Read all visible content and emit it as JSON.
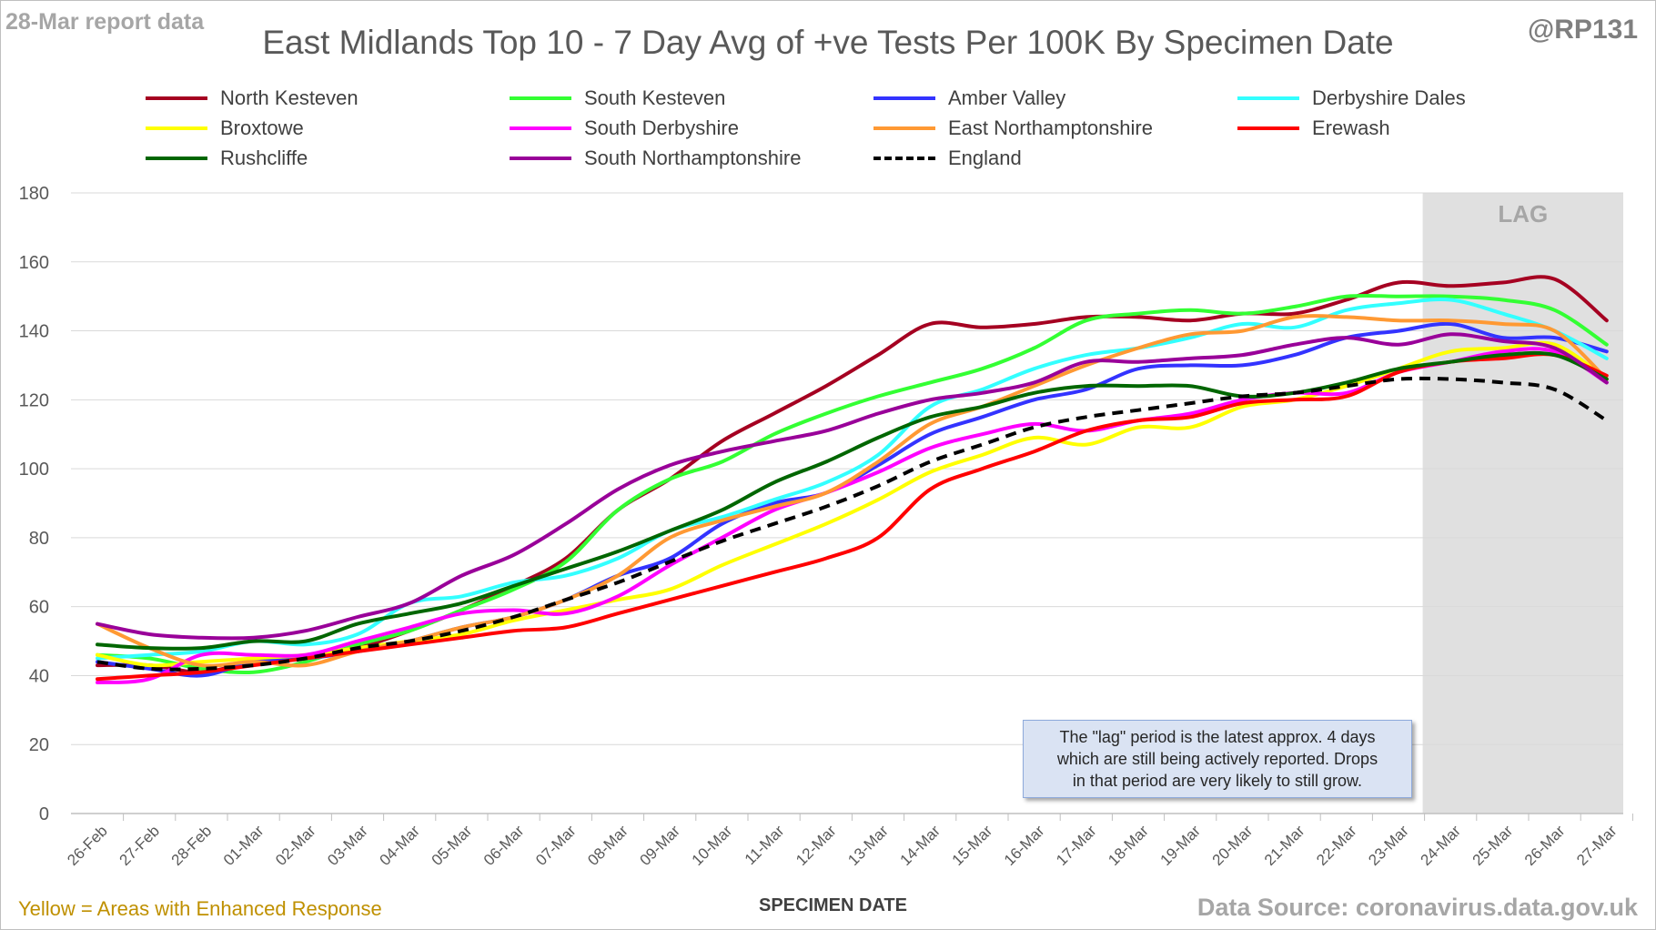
{
  "header": {
    "report_date": "28-Mar report data",
    "title": "East Midlands Top 10 - 7 Day Avg of +ve Tests Per 100K By Specimen Date",
    "handle": "@RP131"
  },
  "footer": {
    "enhanced_note": "Yellow = Areas with Enhanced Response",
    "data_source": "Data Source: coronavirus.data.gov.uk"
  },
  "annotation": {
    "lag_label": "LAG",
    "note_lines": [
      "The \"lag\" period is the latest approx. 4 days",
      "which are still being actively reported.  Drops",
      "in that period are very likely to still grow."
    ]
  },
  "chart_data": {
    "type": "line",
    "title": "East Midlands Top 10 - 7 Day Avg of +ve Tests Per 100K By Specimen Date",
    "xlabel": "SPECIMEN DATE",
    "ylabel": "",
    "ylim": [
      0,
      180
    ],
    "yticks": [
      0,
      20,
      40,
      60,
      80,
      100,
      120,
      140,
      160,
      180
    ],
    "grid": true,
    "legend_position": "top",
    "lag_region": {
      "from": "23-Mar",
      "to": "27-Mar",
      "color": "#e0e0e0"
    },
    "categories": [
      "26-Feb",
      "27-Feb",
      "28-Feb",
      "01-Mar",
      "02-Mar",
      "03-Mar",
      "04-Mar",
      "05-Mar",
      "06-Mar",
      "07-Mar",
      "08-Mar",
      "09-Mar",
      "10-Mar",
      "11-Mar",
      "12-Mar",
      "13-Mar",
      "14-Mar",
      "15-Mar",
      "16-Mar",
      "17-Mar",
      "18-Mar",
      "19-Mar",
      "20-Mar",
      "21-Mar",
      "22-Mar",
      "23-Mar",
      "24-Mar",
      "25-Mar",
      "26-Mar",
      "27-Mar"
    ],
    "series": [
      {
        "name": "North Kesteven",
        "color": "#a50021",
        "dash": false,
        "values": [
          43,
          43,
          41,
          44,
          45,
          48,
          53,
          59,
          66,
          74,
          88,
          97,
          108,
          116,
          124,
          133,
          142,
          141,
          142,
          144,
          144,
          143,
          145,
          145,
          149,
          154,
          153,
          154,
          155,
          143
        ]
      },
      {
        "name": "South Kesteven",
        "color": "#33ff33",
        "dash": false,
        "values": [
          46,
          45,
          42,
          41,
          44,
          49,
          53,
          59,
          65,
          73,
          88,
          97,
          102,
          110,
          116,
          121,
          125,
          129,
          135,
          143,
          145,
          146,
          145,
          147,
          150,
          150,
          150,
          149,
          146,
          136
        ]
      },
      {
        "name": "Amber Valley",
        "color": "#3333ff",
        "dash": false,
        "values": [
          44,
          42,
          40,
          44,
          45,
          47,
          50,
          54,
          57,
          62,
          69,
          74,
          84,
          90,
          93,
          101,
          110,
          115,
          120,
          123,
          129,
          130,
          130,
          133,
          138,
          140,
          142,
          138,
          138,
          134
        ]
      },
      {
        "name": "Derbyshire Dales",
        "color": "#33ffff",
        "dash": false,
        "values": [
          45,
          46,
          47,
          50,
          49,
          52,
          61,
          63,
          67,
          69,
          74,
          82,
          86,
          91,
          96,
          104,
          118,
          123,
          129,
          133,
          135,
          138,
          142,
          141,
          146,
          148,
          149,
          145,
          140,
          132
        ]
      },
      {
        "name": "Broxtowe",
        "color": "#ffff00",
        "dash": false,
        "values": [
          46,
          43,
          44,
          45,
          46,
          48,
          50,
          52,
          56,
          59,
          62,
          65,
          72,
          78,
          84,
          91,
          99,
          104,
          109,
          107,
          112,
          112,
          118,
          120,
          124,
          129,
          134,
          135,
          136,
          126
        ]
      },
      {
        "name": "South Derbyshire",
        "color": "#ff00ff",
        "dash": false,
        "values": [
          38,
          39,
          46,
          46,
          46,
          50,
          54,
          58,
          59,
          58,
          63,
          72,
          80,
          88,
          93,
          99,
          106,
          110,
          113,
          111,
          114,
          116,
          120,
          122,
          122,
          128,
          131,
          134,
          134,
          125
        ]
      },
      {
        "name": "East Northamptonshire",
        "color": "#ff9933",
        "dash": false,
        "values": [
          55,
          48,
          43,
          44,
          43,
          47,
          50,
          54,
          57,
          62,
          69,
          80,
          85,
          89,
          93,
          102,
          113,
          118,
          124,
          130,
          135,
          139,
          140,
          144,
          144,
          143,
          143,
          142,
          140,
          126
        ]
      },
      {
        "name": "Erewash",
        "color": "#ff0000",
        "dash": false,
        "values": [
          39,
          40,
          41,
          43,
          45,
          47,
          49,
          51,
          53,
          54,
          58,
          62,
          66,
          70,
          74,
          80,
          94,
          100,
          105,
          111,
          114,
          115,
          119,
          120,
          121,
          128,
          131,
          132,
          133,
          127
        ]
      },
      {
        "name": "Rushcliffe",
        "color": "#006600",
        "dash": false,
        "values": [
          49,
          48,
          48,
          50,
          50,
          55,
          58,
          61,
          66,
          71,
          76,
          82,
          88,
          96,
          102,
          109,
          115,
          118,
          122,
          124,
          124,
          124,
          121,
          122,
          125,
          129,
          131,
          133,
          133,
          126
        ]
      },
      {
        "name": "South Northamptonshire",
        "color": "#990099",
        "dash": false,
        "values": [
          55,
          52,
          51,
          51,
          53,
          57,
          61,
          69,
          75,
          84,
          94,
          101,
          105,
          108,
          111,
          116,
          120,
          122,
          125,
          131,
          131,
          132,
          133,
          136,
          138,
          136,
          139,
          137,
          135,
          125
        ]
      },
      {
        "name": "England",
        "color": "#000000",
        "dash": true,
        "values": [
          44,
          42,
          42,
          43,
          45,
          48,
          50,
          53,
          57,
          62,
          67,
          73,
          79,
          84,
          89,
          95,
          102,
          107,
          112,
          115,
          117,
          119,
          121,
          122,
          124,
          126,
          126,
          125,
          123,
          114
        ]
      }
    ]
  }
}
